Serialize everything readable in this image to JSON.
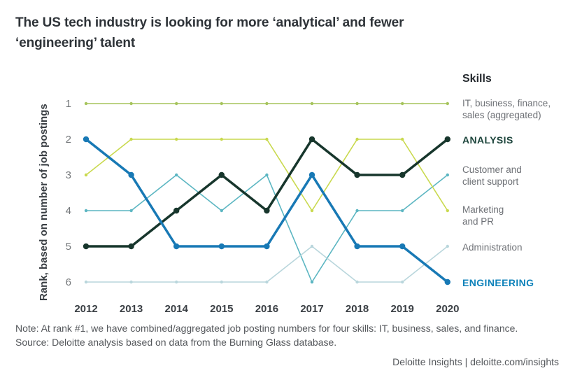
{
  "title": "The US tech industry is looking for more ‘analytical’ and fewer\n‘engineering’ talent",
  "y_axis_label": "Rank, based on number of job postings",
  "legend": {
    "title": "Skills",
    "entries": [
      {
        "label": "IT, business, finance,\nsales (aggregated)",
        "color": "#6e7176",
        "bold": false
      },
      {
        "label": "ANALYSIS",
        "color": "#1d453c",
        "bold": true
      },
      {
        "label": "Customer and\nclient support",
        "color": "#6e7176",
        "bold": false
      },
      {
        "label": "Marketing\nand PR",
        "color": "#6e7176",
        "bold": false
      },
      {
        "label": "Administration",
        "color": "#6e7176",
        "bold": false
      },
      {
        "label": "ENGINEERING",
        "color": "#0e82ba",
        "bold": true
      }
    ]
  },
  "chart_data": {
    "type": "line",
    "title": "The US tech industry is looking for more ‘analytical’ and fewer ‘engineering’ talent",
    "x": [
      "2012",
      "2013",
      "2014",
      "2015",
      "2016",
      "2017",
      "2018",
      "2019",
      "2020"
    ],
    "xlabel": "",
    "ylabel": "Rank, based on number of job postings",
    "y_ticks": [
      1,
      2,
      3,
      4,
      5,
      6
    ],
    "ylim": [
      1,
      6
    ],
    "y_inverted": true,
    "grid": false,
    "legend_position": "right",
    "series": [
      {
        "name": "IT, business, finance, sales (aggregated)",
        "color": "#a6c45c",
        "emphasis": false,
        "values": [
          1,
          1,
          1,
          1,
          1,
          1,
          1,
          1,
          1
        ]
      },
      {
        "name": "ANALYSIS",
        "color": "#17362c",
        "emphasis": true,
        "values": [
          5,
          5,
          4,
          3,
          4,
          2,
          3,
          3,
          2
        ]
      },
      {
        "name": "Customer and client support",
        "color": "#5cb6c2",
        "emphasis": false,
        "values": [
          4,
          4,
          3,
          4,
          3,
          6,
          4,
          4,
          3
        ]
      },
      {
        "name": "Marketing and PR",
        "color": "#c9d94e",
        "emphasis": false,
        "values": [
          3,
          2,
          2,
          2,
          2,
          4,
          2,
          2,
          4
        ]
      },
      {
        "name": "Administration",
        "color": "#b9d6dc",
        "emphasis": false,
        "values": [
          6,
          6,
          6,
          6,
          6,
          5,
          6,
          6,
          5
        ]
      },
      {
        "name": "ENGINEERING",
        "color": "#1879b5",
        "emphasis": true,
        "values": [
          2,
          3,
          5,
          5,
          5,
          3,
          5,
          5,
          6
        ]
      }
    ]
  },
  "note": "Note: At rank #1, we have combined/aggregated job posting numbers for four skills: IT, business, sales, and finance.",
  "source": "Source: Deloitte analysis based on data from the Burning Glass database.",
  "footer": "Deloitte Insights | deloitte.com/insights"
}
